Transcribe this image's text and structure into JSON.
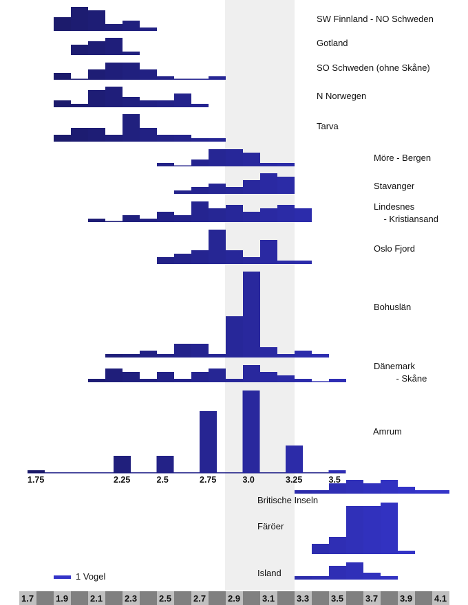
{
  "chart_data": {
    "type": "bar",
    "title": "",
    "xlabel": "",
    "ylabel": "",
    "bin_width": 0.1,
    "xlim": [
      1.7,
      4.2
    ],
    "highlight_range": [
      2.9,
      3.3
    ],
    "unit_label": "1 Vogel",
    "x_tick_labels": [
      "1.7",
      "1.9",
      "2.1",
      "2.3",
      "2.5",
      "2.7",
      "2.9",
      "3.1",
      "3.3",
      "3.5",
      "3.7",
      "3.9",
      "4.1"
    ],
    "series": [
      {
        "name": "SW Finnland - NO Schweden",
        "start": 1.9,
        "values": [
          4,
          7,
          6,
          2,
          3,
          1
        ]
      },
      {
        "name": "Gotland",
        "start": 2.0,
        "values": [
          3,
          4,
          5,
          1
        ]
      },
      {
        "name": "SO Schweden (ohne Skåne)",
        "start": 1.9,
        "values": [
          2,
          0,
          3,
          5,
          5,
          3,
          1,
          0,
          0,
          1
        ]
      },
      {
        "name": "N Norwegen",
        "start": 1.9,
        "values": [
          2,
          1,
          5,
          6,
          3,
          2,
          2,
          4,
          1
        ]
      },
      {
        "name": "Tarva",
        "start": 1.9,
        "values": [
          2,
          4,
          4,
          2,
          8,
          4,
          2,
          2,
          1,
          1
        ]
      },
      {
        "name": "Möre - Bergen",
        "start": 2.5,
        "values": [
          1,
          0,
          2,
          5,
          5,
          4,
          1,
          1
        ]
      },
      {
        "name": "Stavanger",
        "start": 2.6,
        "values": [
          1,
          2,
          3,
          2,
          4,
          6,
          5
        ]
      },
      {
        "name": "Lindesnes\n    - Kristiansand",
        "start": 2.1,
        "values": [
          1,
          0,
          2,
          1,
          3,
          2,
          6,
          4,
          5,
          3,
          4,
          5,
          4
        ]
      },
      {
        "name": "Oslo Fjord",
        "start": 2.5,
        "values": [
          2,
          3,
          4,
          10,
          4,
          2,
          7,
          1,
          1
        ]
      },
      {
        "name": "Bohuslän",
        "start": 2.2,
        "values": [
          1,
          1,
          2,
          1,
          4,
          4,
          1,
          12,
          25,
          3,
          1,
          2,
          1
        ]
      },
      {
        "name": "Dänemark\n         - Skåne",
        "start": 2.1,
        "values": [
          1,
          4,
          3,
          1,
          3,
          1,
          3,
          4,
          1,
          5,
          3,
          2,
          1,
          0,
          1
        ]
      },
      {
        "name": "Britische Inseln",
        "start": 3.3,
        "values": [
          1,
          1,
          3,
          4,
          3,
          4,
          2,
          1,
          1
        ]
      },
      {
        "name": "Färöer",
        "start": 3.4,
        "values": [
          3,
          5,
          14,
          14,
          15,
          1
        ]
      },
      {
        "name": "Island",
        "start": 3.3,
        "values": [
          1,
          1,
          4,
          5,
          2,
          1
        ]
      }
    ],
    "amrum": {
      "name": "Amrum",
      "x": [
        1.75,
        2.25,
        2.5,
        2.75,
        3.0,
        3.25,
        3.5
      ],
      "x_labels": [
        "1.75",
        "2.25",
        "2.5",
        "2.75",
        "3.0",
        "3.25",
        "3.5"
      ],
      "values": [
        1,
        5,
        5,
        18,
        24,
        8,
        1
      ]
    },
    "colors": {
      "bar_dark": "#1b1a6a",
      "bar_bright": "#3434c8",
      "highlight": "#efefef",
      "axis_light": "#c0c0c0",
      "axis_dark": "#808080"
    }
  }
}
